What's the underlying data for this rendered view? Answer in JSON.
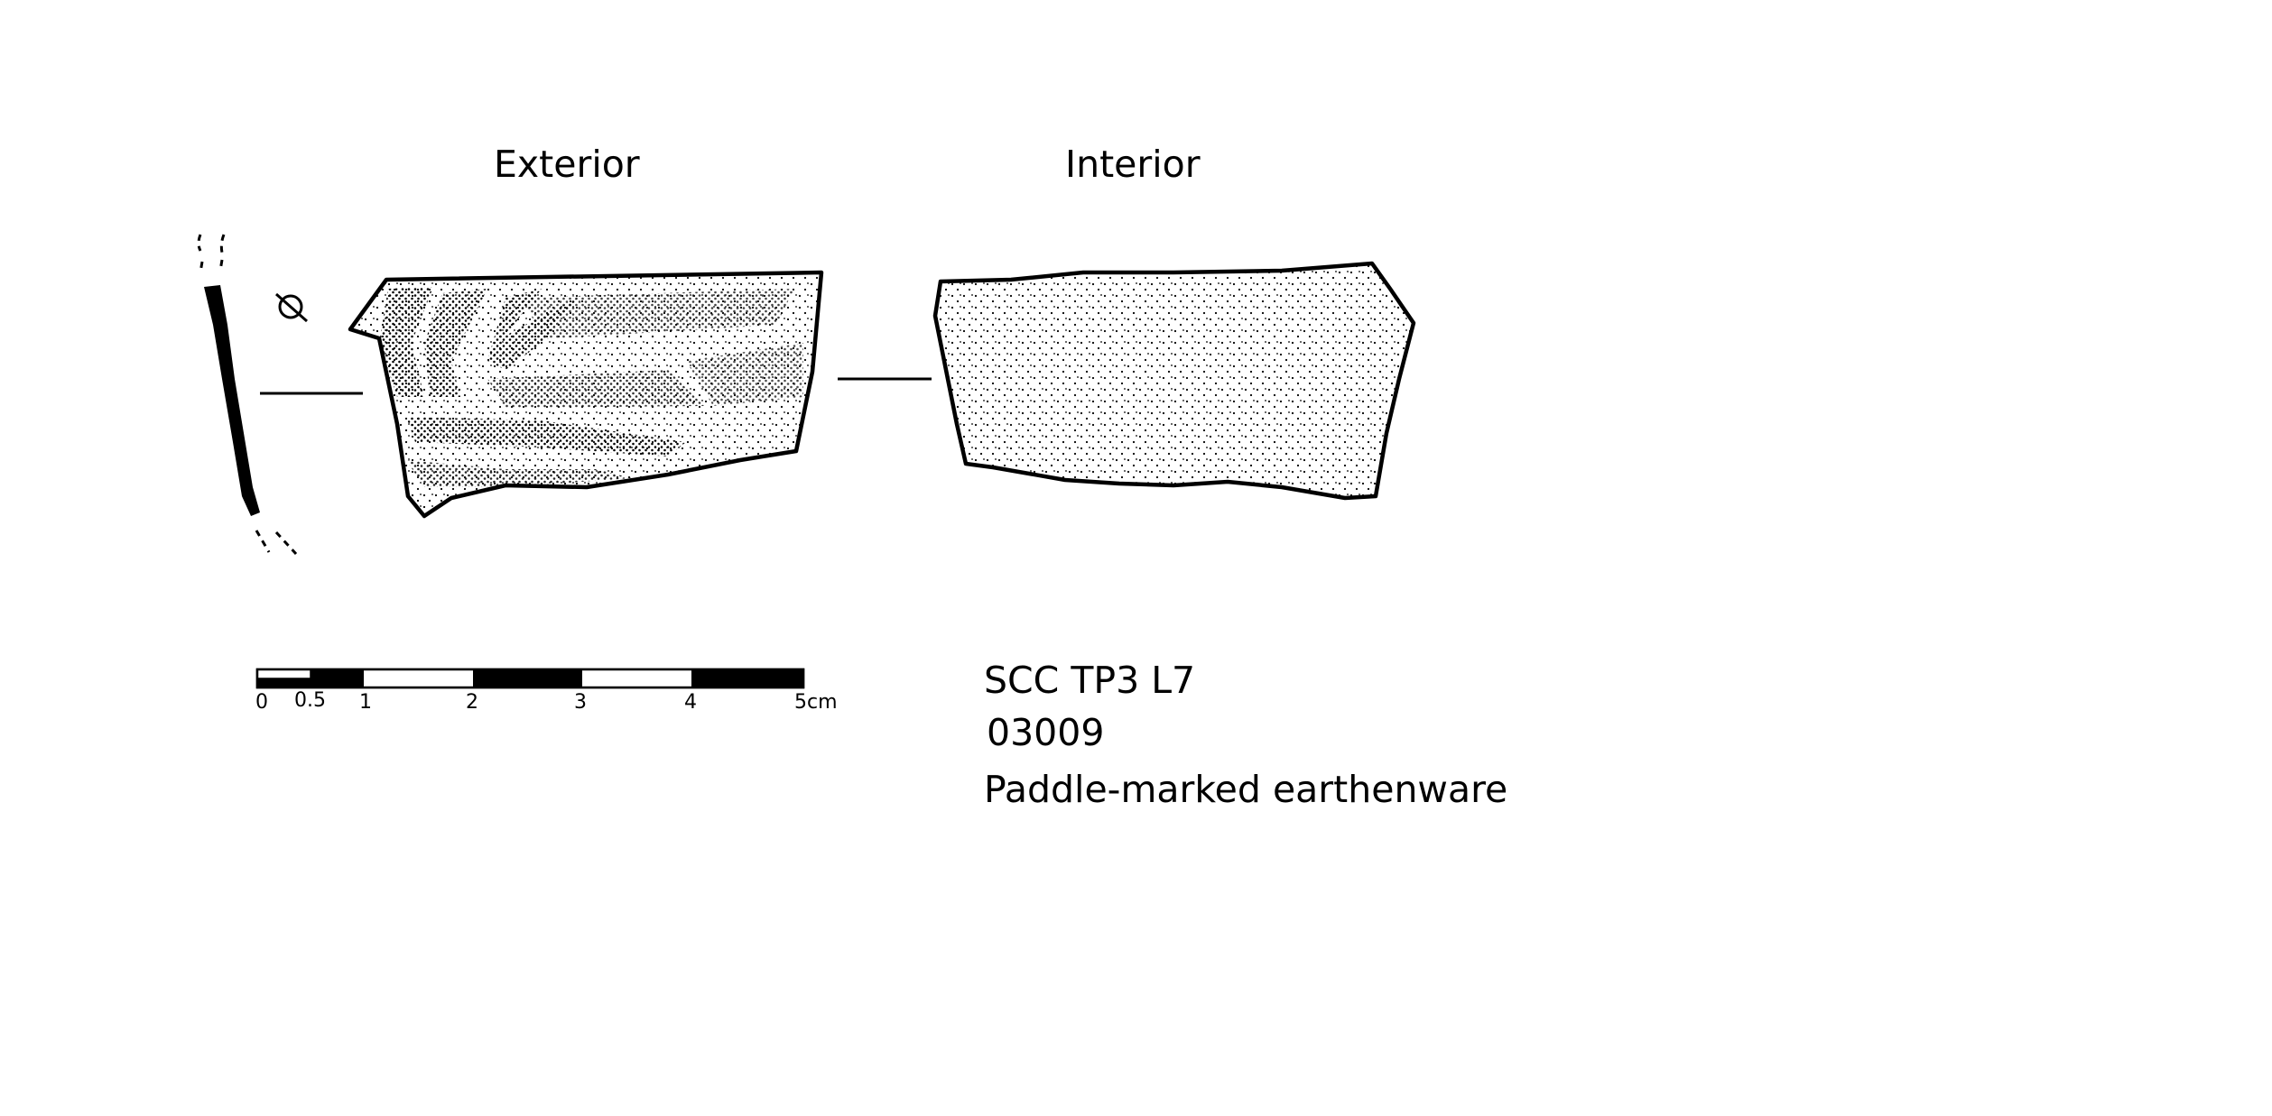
{
  "views": {
    "exterior_label": "Exterior",
    "interior_label": "Interior"
  },
  "scale_bar": {
    "ticks": [
      "0",
      "0.5",
      "1",
      "2",
      "3",
      "4",
      "5cm"
    ]
  },
  "catalog": {
    "context": "SCC TP3 L7",
    "number": "03009",
    "description": "Paddle-marked earthenware"
  },
  "colors": {
    "ink": "#000000",
    "paper": "#ffffff"
  }
}
